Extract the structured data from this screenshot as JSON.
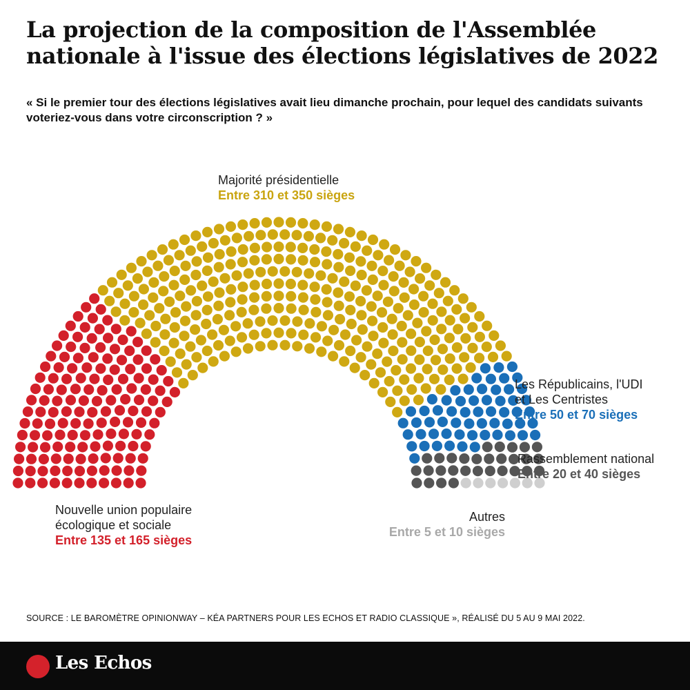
{
  "title": "La projection de la composition de l'Assemblée nationale à l'issue des élections législatives de 2022",
  "subtitle": "« Si le premier tour des élections législatives avait lieu dimanche prochain, pour lequel des candidats suivants voteriez-vous dans votre circonscription ? »",
  "labels": {
    "majorite": {
      "name": "Majorité présidentielle",
      "seats": "Entre 310 et 350 sièges"
    },
    "lr": {
      "name_line1": "Les Républicains, l'UDI",
      "name_line2": "et Les Centristes",
      "seats": "Entre 50 et 70 sièges"
    },
    "rn": {
      "name": "Rassemblement national",
      "seats": "Entre 20 et 40 sièges"
    },
    "autres": {
      "name": "Autres",
      "seats": "Entre 5 et 10 sièges"
    },
    "nupes": {
      "name_line1": "Nouvelle union populaire",
      "name_line2": "écologique et sociale",
      "seats": "Entre 135 et 165 sièges"
    }
  },
  "source": "SOURCE : LE BAROMÈTRE OPINIONWAY – KÉA PARTNERS POUR LES ECHOS ET RADIO CLASSIQUE », RÉALISÉ DU 5 AU 9 MAI 2022.",
  "logo": "Les Echos",
  "colors": {
    "nupes": "#d3202a",
    "majorite": "#cfa812",
    "lr": "#1a6fb8",
    "rn": "#555555",
    "autres": "#cfcfcf"
  },
  "chart_data": {
    "type": "hemicycle",
    "series": [
      {
        "name": "Nouvelle union populaire écologique et sociale",
        "key": "nupes",
        "seats": 150
      },
      {
        "name": "Majorité présidentielle",
        "key": "majorite",
        "seats": 330
      },
      {
        "name": "Les Républicains, l'UDI et Les Centristes",
        "key": "lr",
        "seats": 60
      },
      {
        "name": "Rassemblement national",
        "key": "rn",
        "seats": 30
      },
      {
        "name": "Autres",
        "key": "autres",
        "seats": 7
      }
    ],
    "total_seats": 577
  }
}
